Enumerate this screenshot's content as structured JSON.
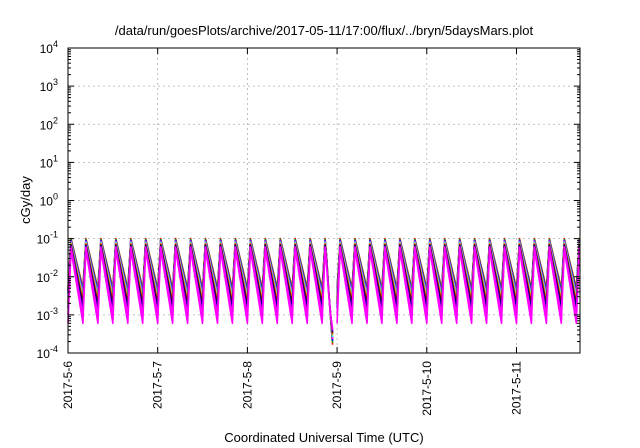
{
  "chart_data": {
    "type": "line",
    "title": "/data/run/goesPlots/archive/2017-05-11/17:00/flux/../bryn/5daysMars.plot",
    "xlabel": "Coordinated Universal Time (UTC)",
    "ylabel": "cGy/day",
    "yscale": "log",
    "ylim": [
      0.0001,
      10000
    ],
    "xlim": [
      "2017-05-06T00:00",
      "2017-05-11T17:00"
    ],
    "grid": true,
    "legend": "none",
    "xtick_labels": [
      "2017-5-6",
      "2017-5-7",
      "2017-5-8",
      "2017-5-9",
      "2017-5-10",
      "2017-5-11"
    ],
    "ytick_labels": [
      {
        "base": "10",
        "exp": "-4"
      },
      {
        "base": "10",
        "exp": "-3"
      },
      {
        "base": "10",
        "exp": "-2"
      },
      {
        "base": "10",
        "exp": "-1"
      },
      {
        "base": "10",
        "exp": "0"
      },
      {
        "base": "10",
        "exp": "1"
      },
      {
        "base": "10",
        "exp": "2"
      },
      {
        "base": "10",
        "exp": "3"
      },
      {
        "base": "10",
        "exp": "4"
      }
    ],
    "oscillation": {
      "cycles_per_day": 6,
      "peak_value_range": [
        0.05,
        0.1
      ],
      "trough_value_range": [
        0.0006,
        0.005
      ],
      "dip": {
        "start": "2017-05-08T21:00",
        "end": "2017-05-08T23:00",
        "min_value": 0.0001
      },
      "gap": {
        "start": "2017-05-08T23:00",
        "end": "2017-05-09T00:00"
      }
    },
    "series": [
      {
        "color": "#ff0000",
        "peak": 0.1,
        "trough": 0.005
      },
      {
        "color": "#00cc00",
        "peak": 0.095,
        "trough": 0.0045
      },
      {
        "color": "#0000ff",
        "peak": 0.09,
        "trough": 0.004
      },
      {
        "color": "#ff00ff",
        "peak": 0.085,
        "trough": 0.0035
      },
      {
        "color": "#00ffff",
        "peak": 0.08,
        "trough": 0.003
      },
      {
        "color": "#ffa500",
        "peak": 0.075,
        "trough": 0.0025
      },
      {
        "color": "#8b0000",
        "peak": 0.07,
        "trough": 0.002
      },
      {
        "color": "#00008b",
        "peak": 0.065,
        "trough": 0.0015
      },
      {
        "color": "#ff00ff",
        "peak": 0.06,
        "trough": 0.001
      },
      {
        "color": "#ff00ff",
        "peak": 0.05,
        "trough": 0.0006
      }
    ]
  }
}
